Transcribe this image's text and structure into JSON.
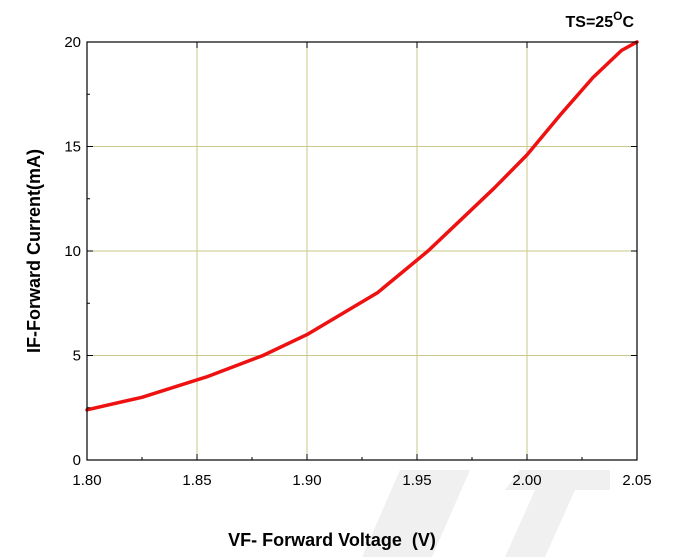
{
  "chart_data": {
    "type": "line",
    "title": "",
    "annotation": {
      "prefix": "TS=25",
      "superscript": "O",
      "suffix": "C"
    },
    "xlabel": "VF- Forward Voltage  (V)",
    "ylabel": "IF-Forward Current(mA)",
    "xlim": [
      1.8,
      2.05
    ],
    "ylim": [
      0,
      20
    ],
    "xticks": [
      1.8,
      1.85,
      1.9,
      1.95,
      2.0,
      2.05
    ],
    "xtick_labels": [
      "1.80",
      "1.85",
      "1.90",
      "1.95",
      "2.00",
      "2.05"
    ],
    "yticks": [
      0,
      5,
      10,
      15,
      20
    ],
    "ytick_labels": [
      "0",
      "5",
      "10",
      "15",
      "20"
    ],
    "grid": true,
    "legend": "none",
    "series": [
      {
        "color": "#ee1111",
        "x": [
          1.8,
          1.825,
          1.855,
          1.88,
          1.9,
          1.932,
          1.955,
          1.97,
          1.985,
          2.0,
          2.015,
          2.03,
          2.043,
          2.05
        ],
        "y": [
          2.4,
          3.0,
          4.0,
          5.0,
          6.0,
          8.0,
          10.0,
          11.5,
          13.0,
          14.6,
          16.5,
          18.3,
          19.6,
          20.0
        ]
      }
    ],
    "colors": {
      "grid": "#c9c98a",
      "axis": "#000000",
      "line": "#ee1111"
    }
  }
}
